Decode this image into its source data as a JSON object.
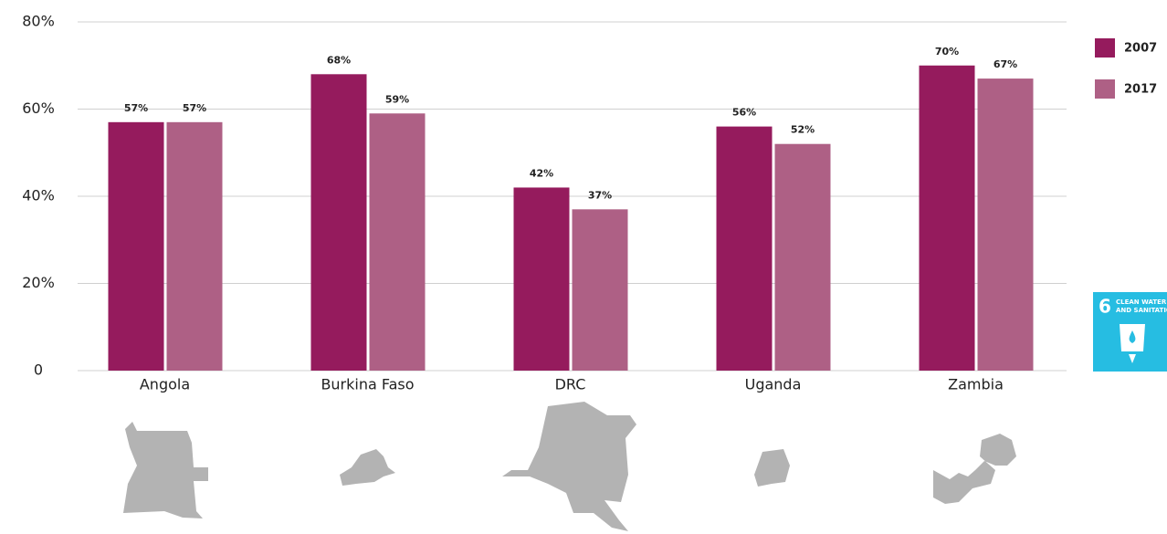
{
  "chart_data": {
    "type": "bar",
    "categories": [
      "Angola",
      "Burkina Faso",
      "DRC",
      "Uganda",
      "Zambia"
    ],
    "series": [
      {
        "name": "2007",
        "color": "#951b5d",
        "values": [
          57,
          68,
          42,
          56,
          70
        ],
        "value_labels": [
          "57%",
          "68%",
          "42%",
          "56%",
          "70%"
        ]
      },
      {
        "name": "2017",
        "color": "#ae6085",
        "values": [
          57,
          59,
          37,
          52,
          67
        ],
        "value_labels": [
          "57%",
          "59%",
          "37%",
          "52%",
          "67%"
        ]
      }
    ],
    "ylim": [
      0,
      80
    ],
    "yticks": [
      0,
      {
        "value": 20,
        "label": "20%"
      },
      {
        "value": 40,
        "label": "40%"
      },
      {
        "value": 60,
        "label": "60%"
      },
      {
        "value": 80,
        "label": "80%"
      }
    ],
    "grid": true,
    "legend": "right"
  },
  "badge": {
    "number": "6",
    "line1": "CLEAN WATER",
    "line2": "AND SANITATION"
  }
}
